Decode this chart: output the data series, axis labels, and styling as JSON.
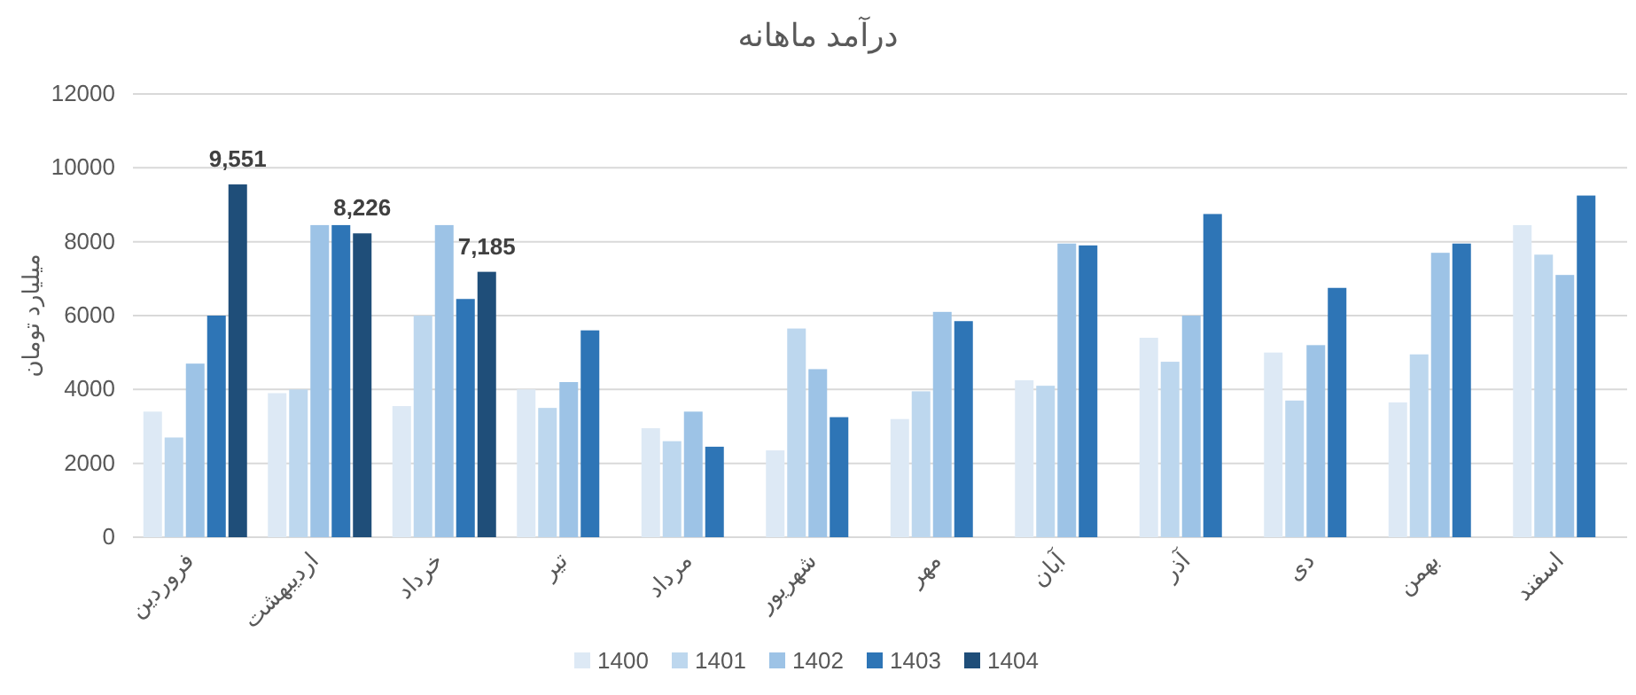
{
  "chart_data": {
    "type": "bar",
    "title": "درآمد ماهانه",
    "ylabel": "میلیارد تومان",
    "categories": [
      "فروردین",
      "اردیبهشت",
      "خرداد",
      "تیر",
      "مرداد",
      "شهریور",
      "مهر",
      "آبان",
      "آذر",
      "دی",
      "بهمن",
      "اسفند"
    ],
    "series": [
      {
        "name": "1400",
        "color": "#dde9f5",
        "values": [
          3400,
          3900,
          3550,
          4000,
          2950,
          2350,
          3200,
          4250,
          5400,
          5000,
          3650,
          8450
        ]
      },
      {
        "name": "1401",
        "color": "#bdd7ee",
        "values": [
          2700,
          4000,
          6000,
          3500,
          2600,
          5650,
          3950,
          4100,
          4750,
          3700,
          4950,
          7650
        ]
      },
      {
        "name": "1402",
        "color": "#9dc3e6",
        "values": [
          4700,
          8450,
          8450,
          4200,
          3400,
          4550,
          6100,
          7950,
          6000,
          5200,
          7700,
          7100
        ]
      },
      {
        "name": "1403",
        "color": "#2e75b6",
        "values": [
          6000,
          8450,
          6450,
          5600,
          2450,
          3250,
          5850,
          7900,
          8750,
          6750,
          7950,
          9250
        ]
      },
      {
        "name": "1404",
        "color": "#1f4e79",
        "values": [
          9551,
          8226,
          7185,
          null,
          null,
          null,
          null,
          null,
          null,
          null,
          null,
          null
        ],
        "value_labels": [
          "9,551",
          "8,226",
          "7,185",
          null,
          null,
          null,
          null,
          null,
          null,
          null,
          null,
          null
        ]
      }
    ],
    "ylim": [
      0,
      12000
    ],
    "yticks": [
      0,
      2000,
      4000,
      6000,
      8000,
      10000,
      12000
    ],
    "grid": "y",
    "legend": "bottom"
  }
}
